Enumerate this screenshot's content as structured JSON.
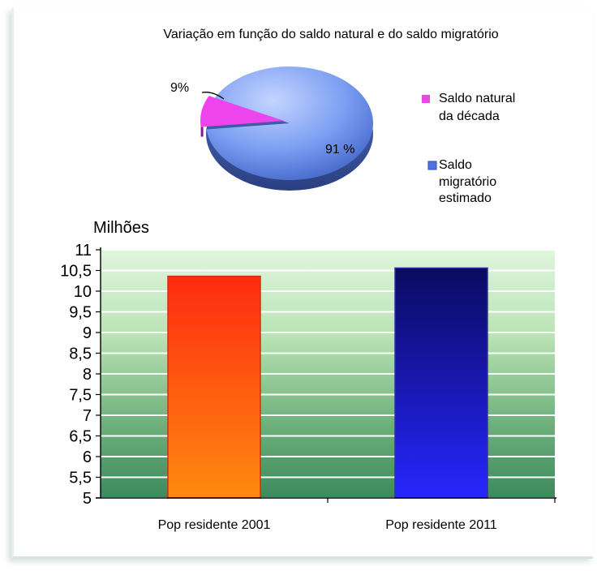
{
  "chart_data": [
    {
      "type": "pie",
      "title": "Variação em função do saldo natural e do saldo migratório",
      "slices": [
        {
          "name": "Saldo natural da década",
          "value": 9,
          "label": "9%",
          "color": "#ee44ee",
          "legend_lines": [
            "Saldo natural",
            "da década"
          ]
        },
        {
          "name": "Saldo migratório estimado",
          "value": 91,
          "label": "91 %",
          "color": "#5f86ea",
          "legend_lines": [
            "Saldo",
            "migratório",
            "estimado"
          ]
        }
      ],
      "legend": "right"
    },
    {
      "type": "bar",
      "ylabel": "Milhões",
      "categories": [
        "Pop residente 2001",
        "Pop residente 2011"
      ],
      "values": [
        10.36,
        10.56
      ],
      "colors": [
        "#ff5a10",
        "#1a1aa8"
      ],
      "ylim": [
        5,
        11
      ],
      "yticks": [
        "5",
        "5,5",
        "6",
        "6,5",
        "7",
        "7,5",
        "8",
        "8,5",
        "9",
        "9,5",
        "10",
        "10,5",
        "11"
      ],
      "grid": true
    }
  ]
}
